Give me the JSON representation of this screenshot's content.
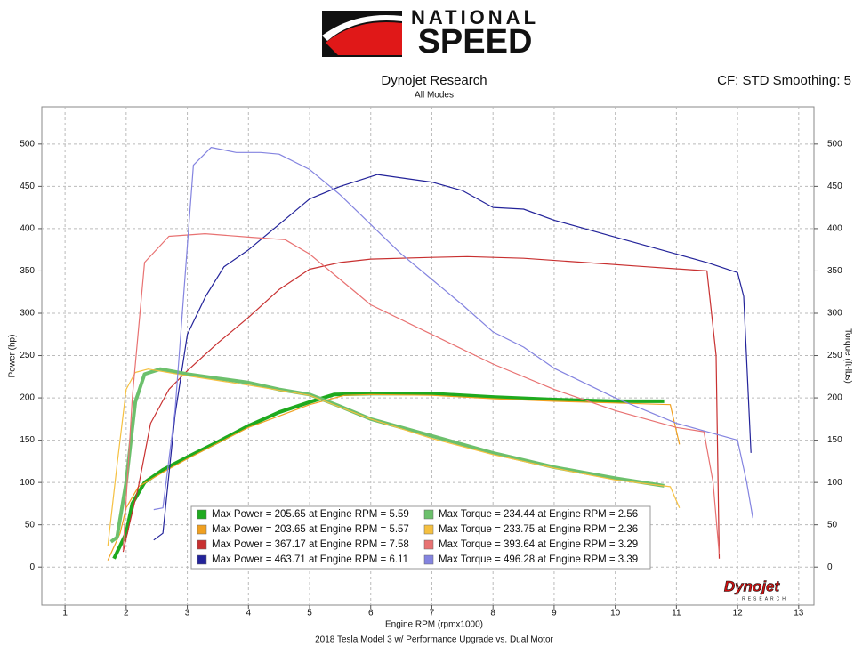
{
  "chart_data": {
    "type": "line",
    "logo_line1": "NATIONAL",
    "logo_line2": "SPEED",
    "title": "Dynojet Research",
    "subtitle": "All Modes",
    "settings_label": "CF: STD Smoothing: 5",
    "xlabel": "Engine RPM (rpmx1000)",
    "ylabel": "Power (hp)",
    "y2label": "Torque (ft-lbs)",
    "caption": "2018 Tesla Model 3 w/ Performance Upgrade vs. Dual Motor",
    "watermark": "Dynojet",
    "watermark_sub": "RESEARCH",
    "xlim": [
      0.62,
      13.25
    ],
    "xticks": [
      1,
      2,
      3,
      4,
      5,
      6,
      7,
      8,
      9,
      10,
      11,
      12,
      13
    ],
    "ylim": [
      -45,
      544
    ],
    "yticks": [
      0,
      50,
      100,
      150,
      200,
      250,
      300,
      350,
      400,
      450,
      500
    ],
    "y2lim": [
      -45,
      544
    ],
    "y2ticks": [
      0,
      50,
      100,
      150,
      200,
      250,
      300,
      350,
      400,
      450,
      500
    ],
    "grid": true,
    "series": [
      {
        "name": "Max Power = 205.65 at Engine RPM = 5.59",
        "color": "#1faa1f",
        "width": 4,
        "x": [
          1.8,
          2.0,
          2.1,
          2.3,
          2.6,
          3,
          3.5,
          4,
          4.5,
          5,
          5.4,
          6,
          7,
          8,
          9,
          10,
          10.8
        ],
        "values": [
          10,
          40,
          75,
          100,
          115,
          130,
          148,
          167,
          183,
          195,
          204,
          205,
          205,
          201,
          198,
          196,
          196
        ]
      },
      {
        "name": "Max Power = 203.65 at Engine RPM = 5.57",
        "color": "#f0a020",
        "width": 1.2,
        "x": [
          1.7,
          1.9,
          2.0,
          2.2,
          2.6,
          3,
          4,
          5,
          5.57,
          6,
          7,
          8,
          9,
          10,
          10.9,
          11.05
        ],
        "values": [
          8,
          40,
          70,
          95,
          112,
          128,
          165,
          192,
          203,
          204,
          203,
          199,
          196,
          194,
          192,
          145
        ]
      },
      {
        "name": "Max Power = 367.17 at Engine RPM = 7.58",
        "color": "#c83030",
        "width": 1.2,
        "x": [
          1.95,
          2.05,
          2.2,
          2.4,
          2.7,
          3.0,
          3.5,
          4,
          4.5,
          5,
          5.5,
          6,
          7,
          7.58,
          8.5,
          9.5,
          10.5,
          11.5,
          11.65,
          11.7
        ],
        "values": [
          18,
          50,
          95,
          170,
          210,
          232,
          265,
          295,
          328,
          352,
          360,
          364,
          366,
          367,
          365,
          360,
          355,
          350,
          250,
          10
        ]
      },
      {
        "name": "Max Power = 463.71 at Engine RPM = 6.11",
        "color": "#23239a",
        "width": 1.2,
        "x": [
          2.45,
          2.6,
          2.8,
          3.0,
          3.3,
          3.6,
          4,
          4.5,
          5,
          5.5,
          6.11,
          7,
          7.5,
          8,
          8.5,
          9,
          10,
          10.5,
          11,
          11.5,
          12,
          12.1,
          12.22
        ],
        "values": [
          32,
          40,
          180,
          275,
          320,
          355,
          375,
          405,
          435,
          450,
          464,
          455,
          445,
          425,
          423,
          410,
          390,
          380,
          370,
          360,
          348,
          320,
          135
        ]
      },
      {
        "name": "Max Torque = 234.44 at Engine RPM = 2.56",
        "color": "#6cc06c",
        "width": 4,
        "axis": "y2",
        "x": [
          1.75,
          1.85,
          2.0,
          2.15,
          2.3,
          2.56,
          3,
          3.5,
          4,
          4.5,
          5,
          5.5,
          6,
          7,
          8,
          9,
          10,
          10.8
        ],
        "values": [
          30,
          35,
          100,
          195,
          228,
          234,
          228,
          223,
          218,
          210,
          204,
          190,
          175,
          155,
          135,
          118,
          105,
          96
        ]
      },
      {
        "name": "Max Torque = 233.75 at Engine RPM = 2.36",
        "color": "#f5c040",
        "width": 1.2,
        "axis": "y2",
        "x": [
          1.7,
          1.85,
          2.0,
          2.15,
          2.36,
          3,
          4,
          5,
          6,
          7,
          8,
          9,
          10,
          10.9,
          11.05
        ],
        "values": [
          25,
          120,
          210,
          230,
          234,
          226,
          215,
          203,
          175,
          152,
          133,
          117,
          103,
          95,
          70
        ]
      },
      {
        "name": "Max Torque = 393.64 at Engine RPM = 3.29",
        "color": "#e87272",
        "width": 1.2,
        "axis": "y2",
        "x": [
          1.95,
          2.1,
          2.3,
          2.7,
          3.29,
          4,
          4.6,
          5,
          5.5,
          6,
          7,
          8,
          9,
          10,
          11,
          11.45,
          11.6,
          11.7
        ],
        "values": [
          20,
          200,
          360,
          391,
          394,
          390,
          387,
          370,
          340,
          310,
          275,
          240,
          210,
          185,
          165,
          160,
          100,
          15
        ]
      },
      {
        "name": "Max Torque = 496.28 at Engine RPM = 3.39",
        "color": "#8484e0",
        "width": 1.2,
        "axis": "y2",
        "x": [
          2.45,
          2.6,
          2.8,
          3.0,
          3.1,
          3.39,
          3.8,
          4.2,
          4.5,
          5,
          5.5,
          6,
          6.5,
          7,
          7.5,
          8,
          8.5,
          9,
          10,
          11,
          12,
          12.15,
          12.25
        ],
        "values": [
          68,
          70,
          185,
          380,
          475,
          496,
          490,
          490,
          488,
          470,
          440,
          405,
          370,
          340,
          310,
          278,
          260,
          235,
          200,
          170,
          150,
          100,
          58
        ]
      }
    ]
  }
}
